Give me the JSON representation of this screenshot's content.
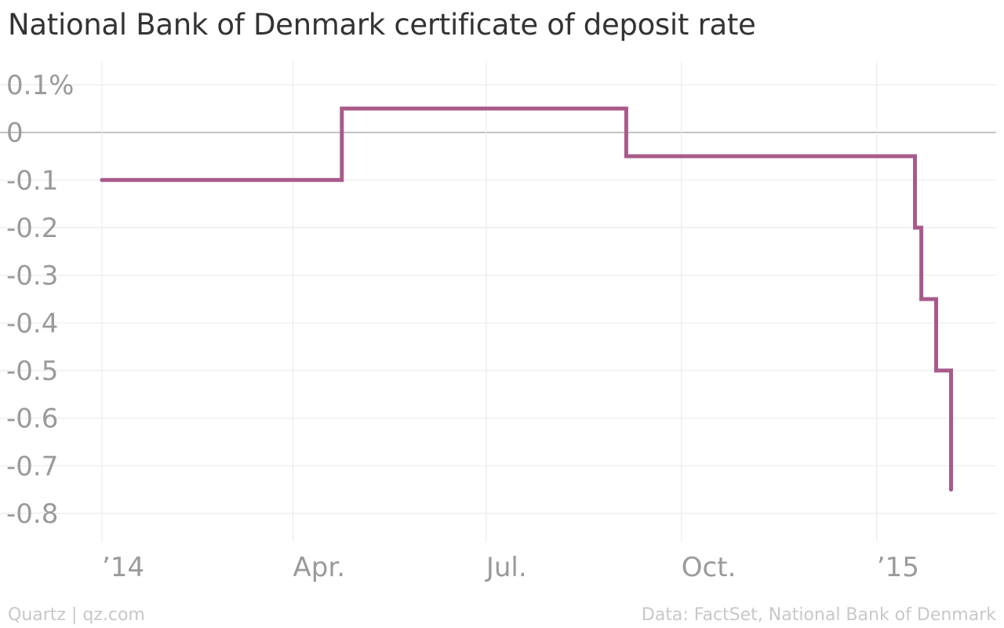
{
  "chart_data": {
    "type": "line",
    "title": "National Bank of Denmark certificate of deposit rate",
    "xlabel": "",
    "ylabel": "",
    "ylim": [
      -0.8,
      0.1
    ],
    "xlim": [
      "2014-01-01",
      "2015-02-10"
    ],
    "step": true,
    "grid": true,
    "legend": "none",
    "y_ticks": [
      {
        "value": 0.1,
        "label": "0.1%"
      },
      {
        "value": 0,
        "label": "0"
      },
      {
        "value": -0.1,
        "label": "-0.1"
      },
      {
        "value": -0.2,
        "label": "-0.2"
      },
      {
        "value": -0.3,
        "label": "-0.3"
      },
      {
        "value": -0.4,
        "label": "-0.4"
      },
      {
        "value": -0.5,
        "label": "-0.5"
      },
      {
        "value": -0.6,
        "label": "-0.6"
      },
      {
        "value": -0.7,
        "label": "-0.7"
      },
      {
        "value": -0.8,
        "label": "-0.8"
      }
    ],
    "x_ticks": [
      {
        "date": "2014-01-01",
        "label": "’14"
      },
      {
        "date": "2014-04-01",
        "label": "Apr."
      },
      {
        "date": "2014-07-01",
        "label": "Jul."
      },
      {
        "date": "2014-10-01",
        "label": "Oct."
      },
      {
        "date": "2015-01-01",
        "label": "’15"
      }
    ],
    "series": [
      {
        "color": "#a85a8a",
        "points": [
          {
            "x": "2014-01-01",
            "y": -0.1
          },
          {
            "x": "2014-04-24",
            "y": 0.05
          },
          {
            "x": "2014-09-05",
            "y": -0.05
          },
          {
            "x": "2015-01-19",
            "y": -0.2
          },
          {
            "x": "2015-01-22",
            "y": -0.35
          },
          {
            "x": "2015-01-29",
            "y": -0.5
          },
          {
            "x": "2015-02-05",
            "y": -0.75
          }
        ]
      }
    ]
  },
  "footer": {
    "source_left": "Quartz | qz.com",
    "source_right": "Data: FactSet, National Bank of Denmark"
  },
  "colors": {
    "line": "#a85a8a",
    "zero_line": "#b3b3b3",
    "grid": "#ebebeb",
    "tick_text": "#9a9a9a",
    "title_text": "#333333",
    "footer_text": "#c8c8c8"
  }
}
